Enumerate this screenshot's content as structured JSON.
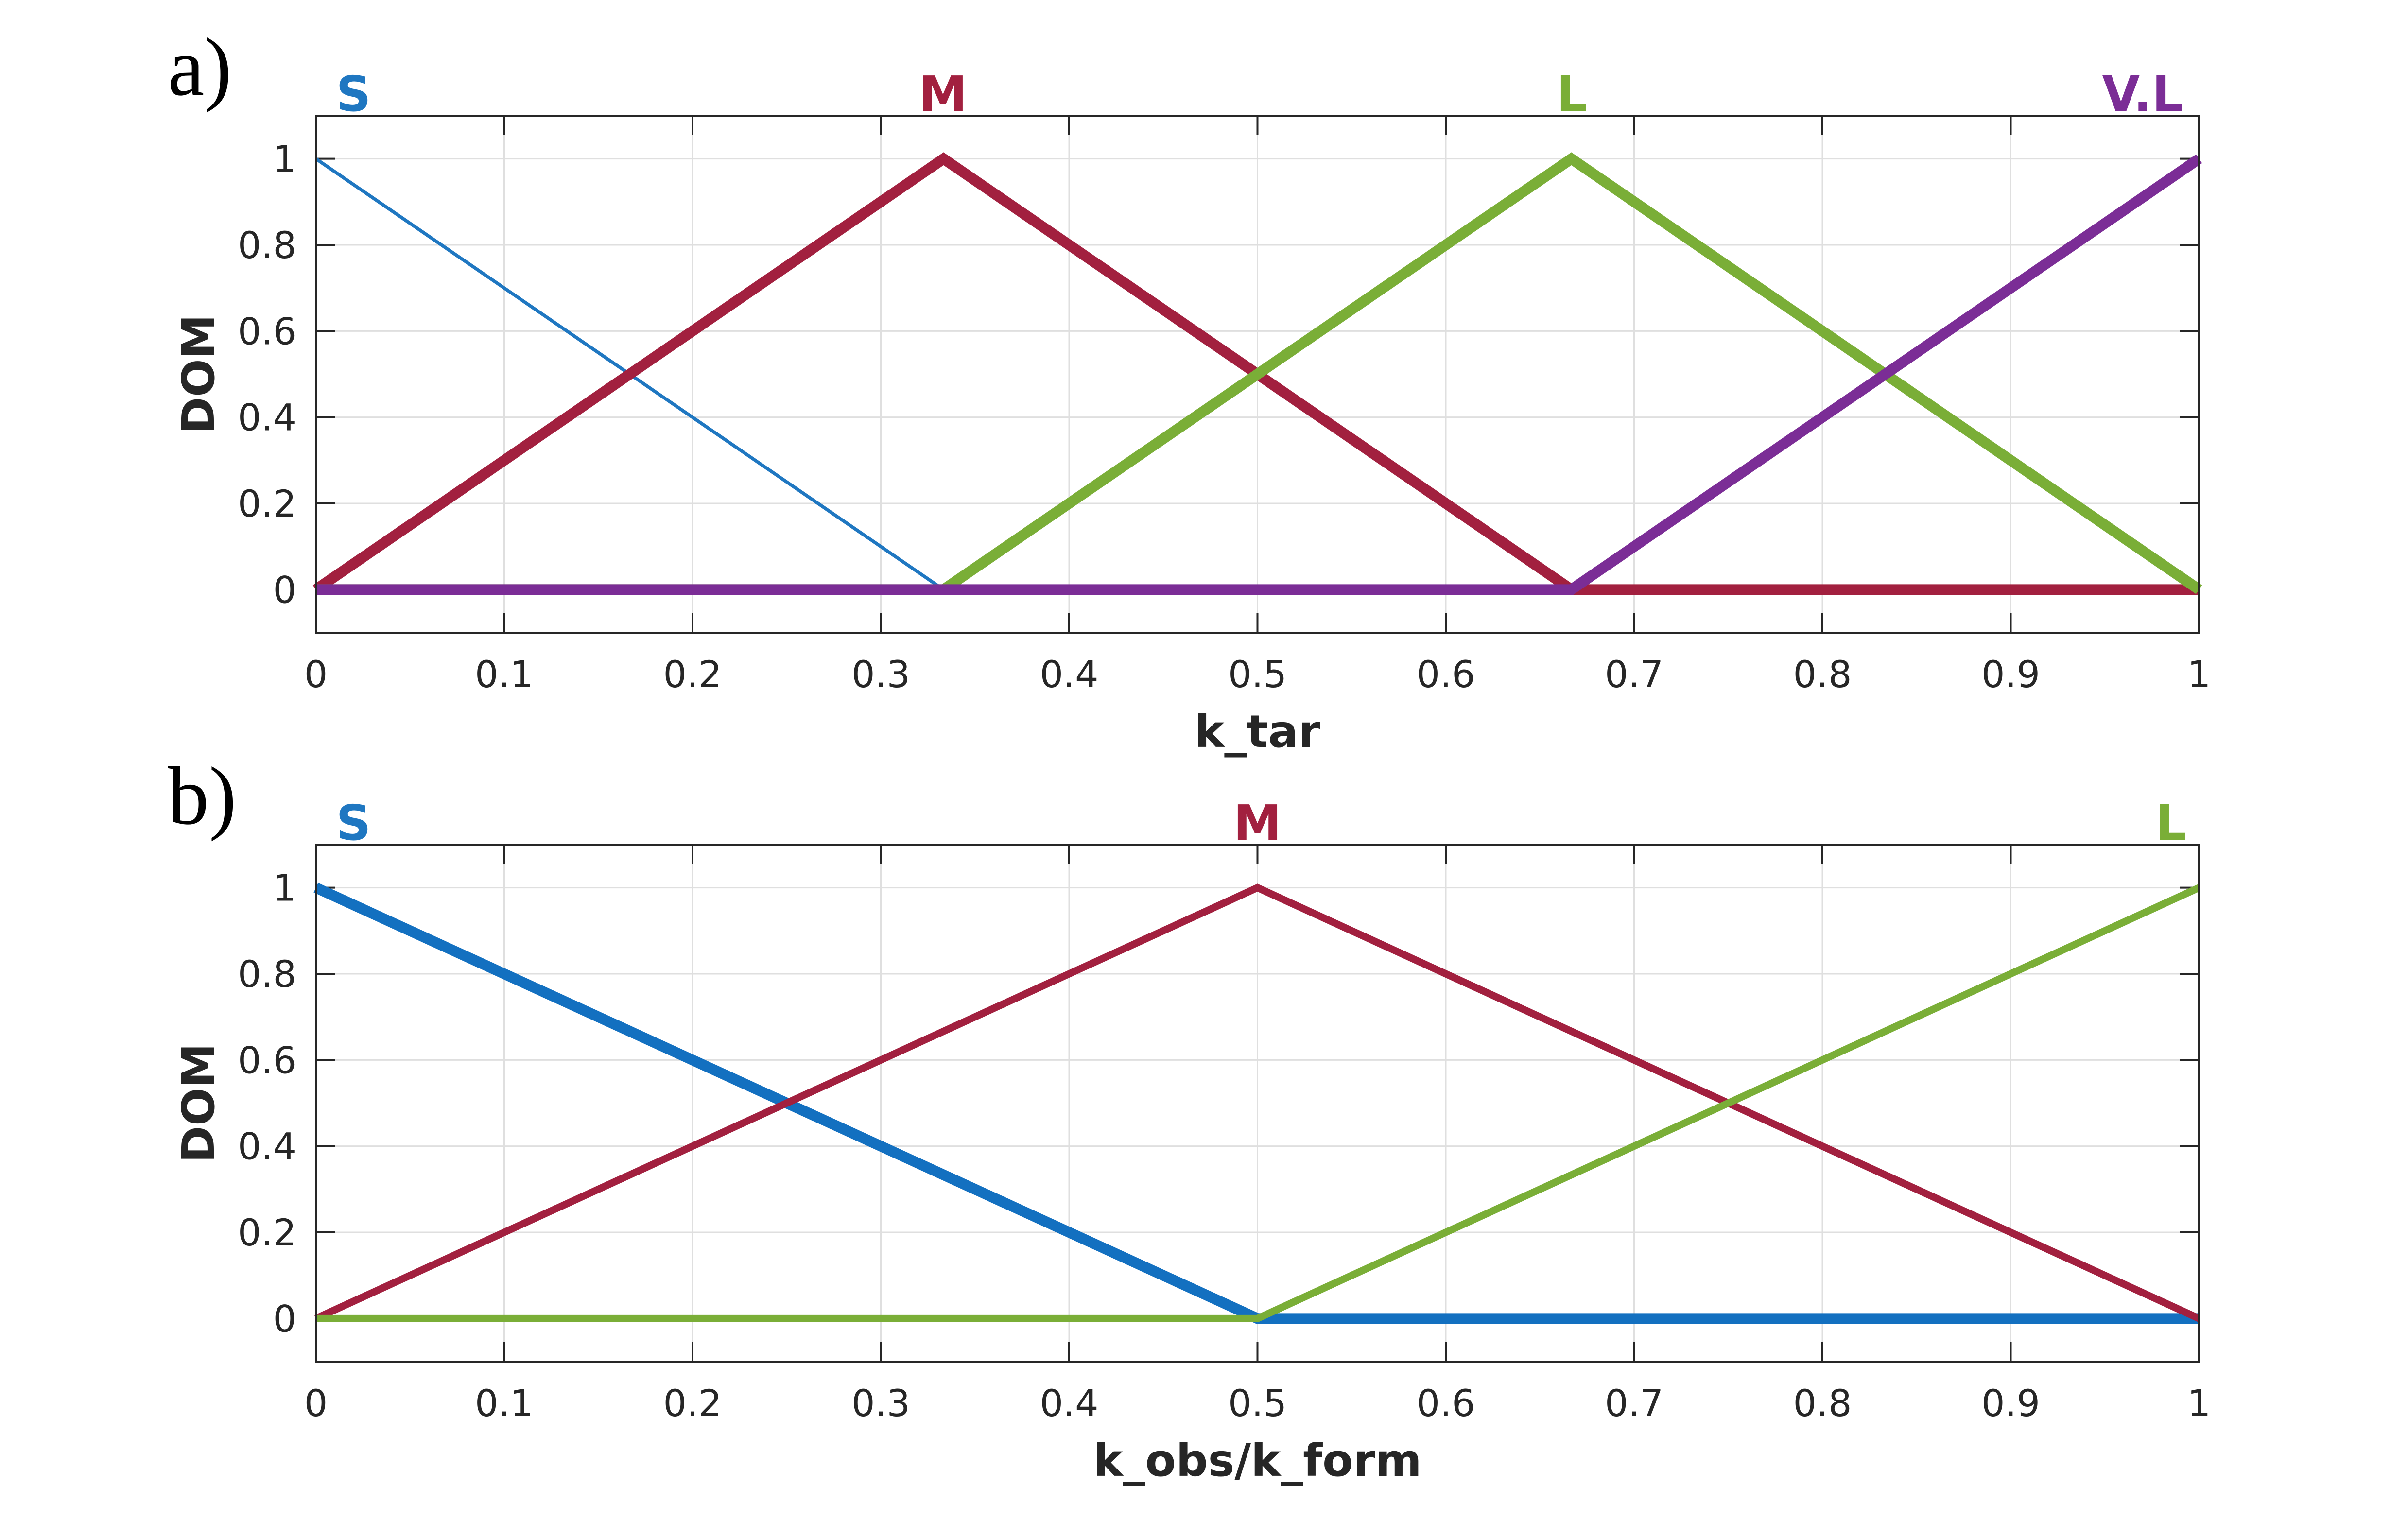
{
  "chart_data": [
    {
      "type": "line",
      "panel_label": "a)",
      "xlabel": "k_tar",
      "ylabel": "DOM",
      "xlim": [
        0,
        1
      ],
      "ylim": [
        -0.1,
        1.1
      ],
      "xticks": [
        "0",
        "0.1",
        "0.2",
        "0.3",
        "0.4",
        "0.5",
        "0.6",
        "0.7",
        "0.8",
        "0.9",
        "1"
      ],
      "yticks": [
        "0",
        "0.2",
        "0.4",
        "0.6",
        "0.8",
        "1"
      ],
      "grid": true,
      "series": [
        {
          "name": "S",
          "color": "#1f77c1",
          "weight": "thin",
          "x": [
            0,
            0.3333,
            1
          ],
          "y": [
            1,
            0,
            0
          ]
        },
        {
          "name": "M",
          "color": "#a2203f",
          "weight": "thick",
          "x": [
            0,
            0.3333,
            0.6667,
            1
          ],
          "y": [
            0,
            1,
            0,
            0
          ]
        },
        {
          "name": "L",
          "color": "#7aae37",
          "weight": "thick",
          "x": [
            0,
            0.3333,
            0.6667,
            1
          ],
          "y": [
            0,
            0,
            1,
            0
          ]
        },
        {
          "name": "V.L",
          "color": "#7b2d96",
          "weight": "thick",
          "x": [
            0,
            0.6667,
            1
          ],
          "y": [
            0,
            0,
            1
          ]
        }
      ],
      "top_labels": [
        {
          "text": "S",
          "x": 0.02,
          "color": "#1f77c1"
        },
        {
          "text": "M",
          "x": 0.333,
          "color": "#a2203f"
        },
        {
          "text": "L",
          "x": 0.667,
          "color": "#7aae37"
        },
        {
          "text": "V.L",
          "x": 0.97,
          "color": "#7b2d96"
        }
      ]
    },
    {
      "type": "line",
      "panel_label": "b)",
      "xlabel": "k_obs/k_form",
      "ylabel": "DOM",
      "xlim": [
        0,
        1
      ],
      "ylim": [
        -0.1,
        1.1
      ],
      "xticks": [
        "0",
        "0.1",
        "0.2",
        "0.3",
        "0.4",
        "0.5",
        "0.6",
        "0.7",
        "0.8",
        "0.9",
        "1"
      ],
      "yticks": [
        "0",
        "0.2",
        "0.4",
        "0.6",
        "0.8",
        "1"
      ],
      "grid": true,
      "series": [
        {
          "name": "S",
          "color": "#1370c0",
          "weight": "thick",
          "x": [
            0,
            0.5,
            1
          ],
          "y": [
            1,
            0,
            0
          ]
        },
        {
          "name": "M",
          "color": "#a2203f",
          "weight": "medium",
          "x": [
            0,
            0.5,
            1
          ],
          "y": [
            0,
            1,
            0
          ]
        },
        {
          "name": "L",
          "color": "#7aae37",
          "weight": "medium",
          "x": [
            0,
            0.5,
            1
          ],
          "y": [
            0,
            0,
            1
          ]
        }
      ],
      "top_labels": [
        {
          "text": "S",
          "x": 0.02,
          "color": "#1f77c1"
        },
        {
          "text": "M",
          "x": 0.5,
          "color": "#a2203f"
        },
        {
          "text": "L",
          "x": 0.985,
          "color": "#7aae37"
        }
      ]
    }
  ]
}
